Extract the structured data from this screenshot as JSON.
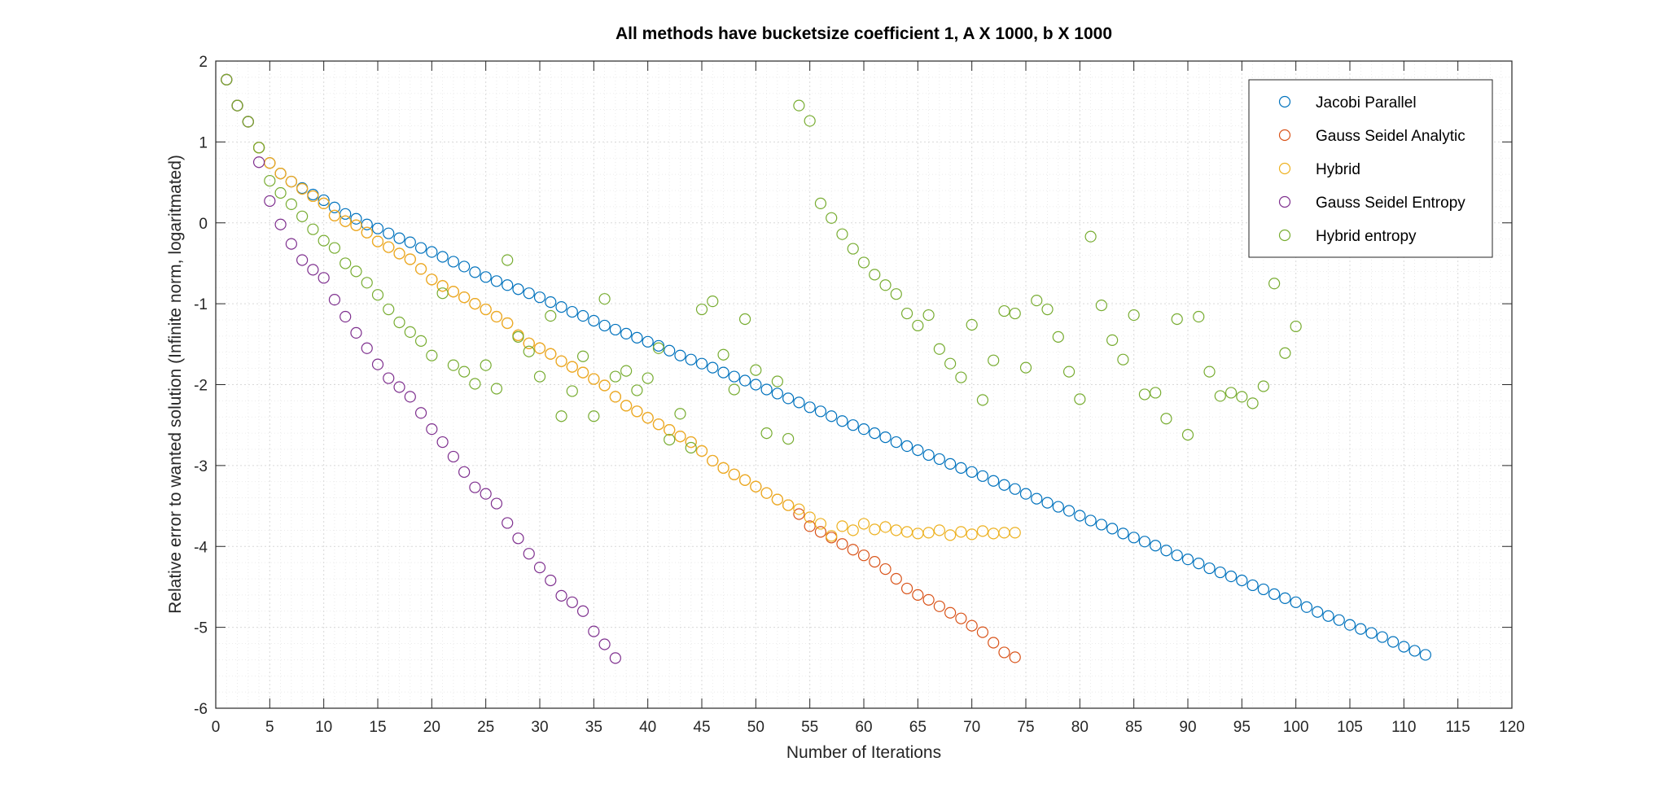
{
  "chart_data": {
    "type": "scatter",
    "title": "All methods have bucketsize coefficient 1, A X 1000, b X 1000",
    "xlabel": "Number of Iterations",
    "ylabel": "Relative error to wanted solution (Infinite norm, logaritmated)",
    "xlim": [
      0,
      120
    ],
    "ylim": [
      -6,
      2
    ],
    "xticks": [
      0,
      5,
      10,
      15,
      20,
      25,
      30,
      35,
      40,
      45,
      50,
      55,
      60,
      65,
      70,
      75,
      80,
      85,
      90,
      95,
      100,
      105,
      110,
      115,
      120
    ],
    "yticks": [
      -6,
      -5,
      -4,
      -3,
      -2,
      -1,
      0,
      1,
      2
    ],
    "grid": "major-and-minor",
    "legend_position": "top-right",
    "marker": "open-circle",
    "series": [
      {
        "name": "Jacobi Parallel",
        "color": "#0072BD",
        "x_start": 1,
        "y": [
          1.77,
          1.45,
          1.25,
          0.93,
          0.74,
          0.61,
          0.51,
          0.43,
          0.35,
          0.28,
          0.19,
          0.11,
          0.05,
          -0.02,
          -0.07,
          -0.13,
          -0.19,
          -0.24,
          -0.31,
          -0.36,
          -0.42,
          -0.48,
          -0.54,
          -0.61,
          -0.67,
          -0.72,
          -0.77,
          -0.82,
          -0.87,
          -0.92,
          -0.98,
          -1.04,
          -1.1,
          -1.15,
          -1.21,
          -1.27,
          -1.32,
          -1.37,
          -1.42,
          -1.47,
          -1.52,
          -1.58,
          -1.64,
          -1.69,
          -1.74,
          -1.79,
          -1.85,
          -1.9,
          -1.95,
          -2.0,
          -2.06,
          -2.11,
          -2.17,
          -2.22,
          -2.28,
          -2.33,
          -2.39,
          -2.45,
          -2.5,
          -2.55,
          -2.6,
          -2.65,
          -2.71,
          -2.76,
          -2.81,
          -2.87,
          -2.92,
          -2.98,
          -3.03,
          -3.08,
          -3.13,
          -3.19,
          -3.24,
          -3.29,
          -3.35,
          -3.41,
          -3.46,
          -3.51,
          -3.56,
          -3.62,
          -3.68,
          -3.73,
          -3.78,
          -3.84,
          -3.89,
          -3.94,
          -3.99,
          -4.05,
          -4.11,
          -4.16,
          -4.21,
          -4.27,
          -4.32,
          -4.37,
          -4.42,
          -4.48,
          -4.53,
          -4.59,
          -4.64,
          -4.69,
          -4.75,
          -4.81,
          -4.86,
          -4.91,
          -4.97,
          -5.02,
          -5.07,
          -5.12,
          -5.18,
          -5.24,
          -5.29,
          -5.34
        ]
      },
      {
        "name": "Gauss Seidel Analytic",
        "color": "#D95319",
        "x_start": 1,
        "y": [
          1.77,
          1.45,
          1.25,
          0.93,
          0.74,
          0.61,
          0.51,
          0.42,
          0.33,
          0.24,
          0.09,
          0.02,
          -0.03,
          -0.12,
          -0.23,
          -0.3,
          -0.38,
          -0.45,
          -0.57,
          -0.7,
          -0.78,
          -0.85,
          -0.92,
          -1.0,
          -1.07,
          -1.16,
          -1.24,
          -1.39,
          -1.49,
          -1.55,
          -1.62,
          -1.71,
          -1.78,
          -1.85,
          -1.93,
          -2.01,
          -2.15,
          -2.26,
          -2.33,
          -2.41,
          -2.49,
          -2.56,
          -2.64,
          -2.71,
          -2.82,
          -2.94,
          -3.03,
          -3.11,
          -3.18,
          -3.26,
          -3.34,
          -3.42,
          -3.49,
          -3.6,
          -3.75,
          -3.82,
          -3.89,
          -3.97,
          -4.04,
          -4.11,
          -4.19,
          -4.28,
          -4.4,
          -4.52,
          -4.6,
          -4.66,
          -4.74,
          -4.82,
          -4.89,
          -4.98,
          -5.06,
          -5.19,
          -5.31,
          -5.37
        ]
      },
      {
        "name": "Hybrid",
        "color": "#EDB120",
        "x_start": 1,
        "y": [
          1.77,
          1.45,
          1.25,
          0.93,
          0.74,
          0.61,
          0.51,
          0.42,
          0.33,
          0.24,
          0.09,
          0.02,
          -0.03,
          -0.12,
          -0.23,
          -0.3,
          -0.38,
          -0.45,
          -0.57,
          -0.7,
          -0.78,
          -0.85,
          -0.92,
          -1.0,
          -1.07,
          -1.16,
          -1.24,
          -1.39,
          -1.49,
          -1.55,
          -1.62,
          -1.71,
          -1.78,
          -1.85,
          -1.93,
          -2.01,
          -2.15,
          -2.26,
          -2.33,
          -2.41,
          -2.49,
          -2.56,
          -2.64,
          -2.71,
          -2.82,
          -2.94,
          -3.03,
          -3.11,
          -3.18,
          -3.26,
          -3.34,
          -3.42,
          -3.49,
          -3.54,
          -3.64,
          -3.72,
          -3.87,
          -3.75,
          -3.8,
          -3.72,
          -3.79,
          -3.76,
          -3.8,
          -3.82,
          -3.84,
          -3.83,
          -3.8,
          -3.86,
          -3.82,
          -3.85,
          -3.81,
          -3.84,
          -3.83,
          -3.83
        ]
      },
      {
        "name": "Gauss Seidel Entropy",
        "color": "#7E2F8E",
        "x_start": 1,
        "y": [
          1.77,
          1.45,
          1.25,
          0.75,
          0.27,
          -0.02,
          -0.26,
          -0.46,
          -0.58,
          -0.68,
          -0.95,
          -1.16,
          -1.36,
          -1.55,
          -1.75,
          -1.92,
          -2.03,
          -2.15,
          -2.35,
          -2.55,
          -2.71,
          -2.89,
          -3.08,
          -3.27,
          -3.35,
          -3.47,
          -3.71,
          -3.9,
          -4.09,
          -4.26,
          -4.42,
          -4.61,
          -4.69,
          -4.8,
          -5.05,
          -5.21,
          -5.38
        ]
      },
      {
        "name": "Hybrid entropy",
        "color": "#77AC30",
        "x_start": 1,
        "y": [
          1.77,
          1.45,
          1.25,
          0.93,
          0.52,
          0.37,
          0.23,
          0.08,
          -0.08,
          -0.22,
          -0.31,
          -0.5,
          -0.6,
          -0.74,
          -0.89,
          -1.07,
          -1.23,
          -1.35,
          -1.46,
          -1.64,
          -0.87,
          -1.76,
          -1.84,
          -1.99,
          -1.76,
          -2.05,
          -0.46,
          -1.41,
          -1.59,
          -1.9,
          -1.15,
          -2.39,
          -2.08,
          -1.65,
          -2.39,
          -0.94,
          -1.9,
          -1.83,
          -2.07,
          -1.92,
          -1.55,
          -2.68,
          -2.36,
          -2.78,
          -1.07,
          -0.97,
          -1.63,
          -2.06,
          -1.19,
          -1.82,
          -2.6,
          -1.96,
          -2.67,
          1.45,
          1.26,
          0.24,
          0.06,
          -0.14,
          -0.32,
          -0.49,
          -0.64,
          -0.77,
          -0.88,
          -1.12,
          -1.27,
          -1.14,
          -1.56,
          -1.74,
          -1.91,
          -1.26,
          -2.19,
          -1.7,
          -1.09,
          -1.12,
          -1.79,
          -0.96,
          -1.07,
          -1.41,
          -1.84,
          -2.18,
          -0.17,
          -1.02,
          -1.45,
          -1.69,
          -1.14,
          -2.12,
          -2.1,
          -2.42,
          -1.19,
          -2.62,
          -1.16,
          -1.84,
          -2.14,
          -2.1,
          -2.15,
          -2.23,
          -2.02,
          -0.75,
          -1.61,
          -1.28
        ]
      }
    ]
  }
}
